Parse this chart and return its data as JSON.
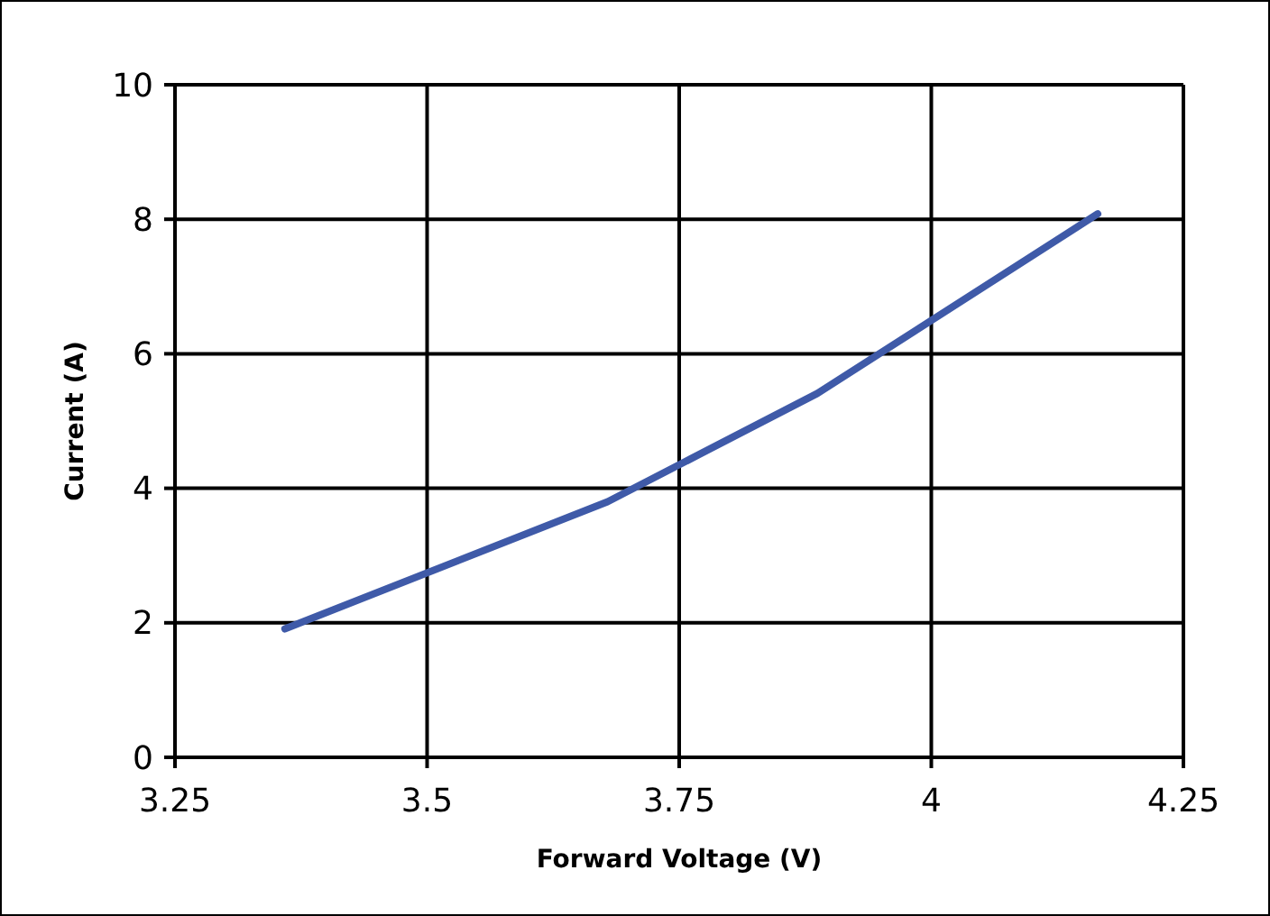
{
  "chart_data": {
    "type": "line",
    "xlabel": "Forward Voltage (V)",
    "ylabel": "Current (A)",
    "series": [
      {
        "color": "#3f5aa8",
        "x": [
          3.359,
          3.679,
          3.887,
          4.165
        ],
        "values": [
          1.91,
          3.8,
          5.41,
          8.08
        ]
      }
    ],
    "xlim": [
      3.25,
      4.25
    ],
    "xticks": [
      3.25,
      3.5,
      3.75,
      4,
      4.25
    ],
    "ylim": [
      0,
      10
    ],
    "yticks": [
      0,
      2,
      4,
      6,
      8,
      10
    ],
    "grid": true,
    "marker": "none",
    "line_style": "solid"
  }
}
